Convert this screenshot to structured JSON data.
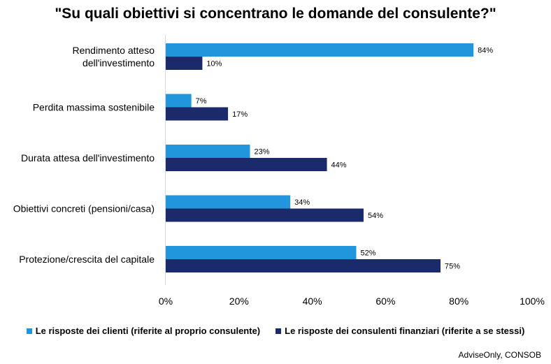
{
  "title": "\"Su quali obiettivi si concentrano le domande del consulente?\"",
  "source": "AdviseOnly, CONSOB",
  "colors": {
    "clienti": "#2196DC",
    "consulenti": "#1B2A6B"
  },
  "chart_data": {
    "type": "bar",
    "orientation": "horizontal",
    "categories": [
      [
        "Rendimento atteso",
        "dell'investimento"
      ],
      [
        "Perdita massima sostenibile"
      ],
      [
        "Durata attesa dell'investimento"
      ],
      [
        "Obiettivi concreti (pensioni/casa)"
      ],
      [
        "Protezione/crescita del capitale"
      ]
    ],
    "series": [
      {
        "name": "Le risposte dei clienti (riferite al proprio consulente)",
        "values": [
          84,
          7,
          23,
          34,
          52
        ],
        "color": "#2196DC"
      },
      {
        "name": "Le risposte dei consulenti finanziari (riferite a se stessi)",
        "values": [
          10,
          17,
          44,
          54,
          75
        ],
        "color": "#1B2A6B"
      }
    ],
    "value_suffix": "%",
    "xlim": [
      0,
      100
    ],
    "xticks": [
      "0%",
      "20%",
      "40%",
      "60%",
      "80%",
      "100%"
    ],
    "grid": false,
    "legend_position": "bottom"
  }
}
